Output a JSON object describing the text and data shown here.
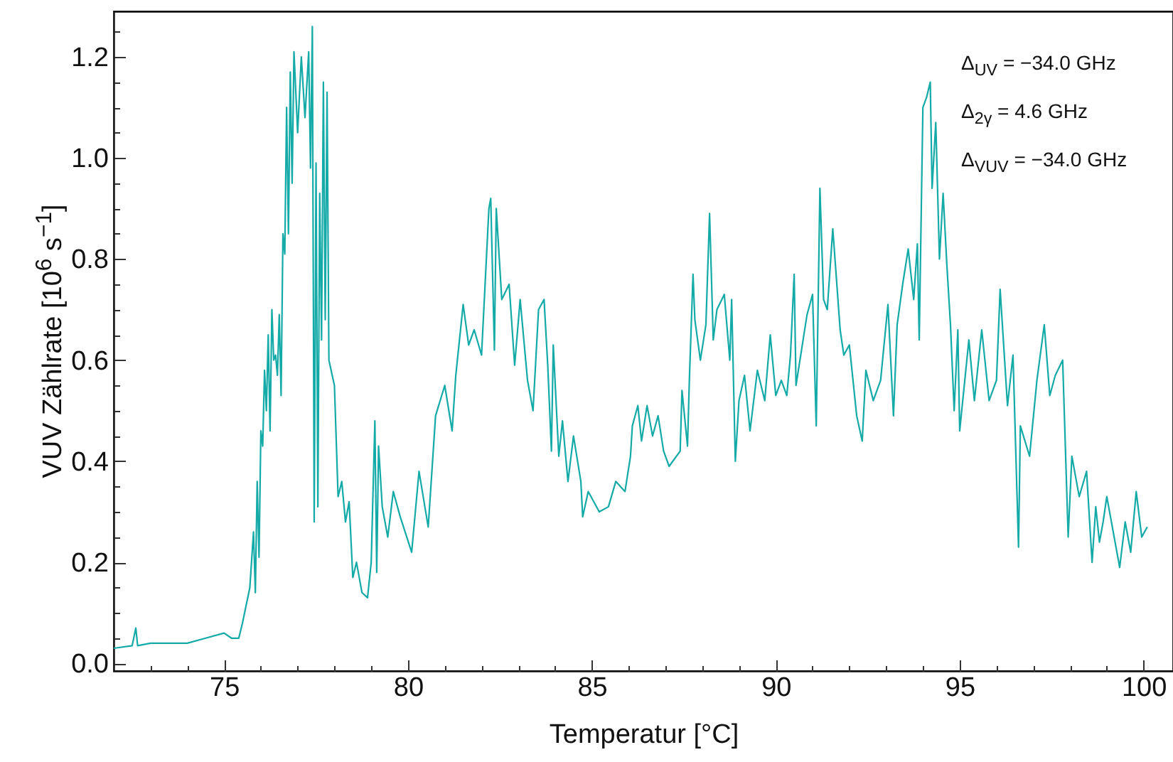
{
  "chart_data": {
    "type": "line",
    "xlabel": "Temperatur [°C]",
    "ylabel": "VUV Zählrate [10$^{6}$ s$^{−1}$]",
    "annotations": [
      "Δ$_{UV}$ = −34.0 GHz",
      "Δ$_{2γ}$ = 4.6 GHz",
      "Δ$_{VUV}$ = −34.0 GHz"
    ],
    "x": [
      72.0,
      72.5,
      72.6,
      72.65,
      73.0,
      73.5,
      74.0,
      74.5,
      75.0,
      75.2,
      75.4,
      75.5,
      75.7,
      75.8,
      75.85,
      75.9,
      75.95,
      76.0,
      76.05,
      76.1,
      76.15,
      76.2,
      76.25,
      76.3,
      76.35,
      76.4,
      76.45,
      76.5,
      76.55,
      76.6,
      76.65,
      76.7,
      76.75,
      76.8,
      76.85,
      76.9,
      77.0,
      77.1,
      77.2,
      77.3,
      77.35,
      77.4,
      77.45,
      77.5,
      77.55,
      77.6,
      77.65,
      77.7,
      77.75,
      77.8,
      77.85,
      78.0,
      78.1,
      78.2,
      78.3,
      78.4,
      78.5,
      78.6,
      78.75,
      78.9,
      79.0,
      79.1,
      79.15,
      79.2,
      79.3,
      79.45,
      79.6,
      79.79,
      80.1,
      80.3,
      80.55,
      80.75,
      81.0,
      81.2,
      81.3,
      81.5,
      81.65,
      81.8,
      82.0,
      82.2,
      82.25,
      82.35,
      82.4,
      82.55,
      82.75,
      82.9,
      83.05,
      83.25,
      83.4,
      83.55,
      83.7,
      83.8,
      83.9,
      83.95,
      84.1,
      84.2,
      84.35,
      84.5,
      84.7,
      84.75,
      84.9,
      85.2,
      85.45,
      85.65,
      85.9,
      86.05,
      86.1,
      86.25,
      86.35,
      86.5,
      86.65,
      86.8,
      86.95,
      87.1,
      87.4,
      87.45,
      87.6,
      87.65,
      87.75,
      87.8,
      87.95,
      88.1,
      88.2,
      88.3,
      88.4,
      88.6,
      88.75,
      88.8,
      88.9,
      89.0,
      89.15,
      89.3,
      89.5,
      89.7,
      89.85,
      90.0,
      90.15,
      90.3,
      90.4,
      90.5,
      90.55,
      90.7,
      90.85,
      91.0,
      91.1,
      91.2,
      91.3,
      91.4,
      91.55,
      91.75,
      91.85,
      92.0,
      92.2,
      92.35,
      92.45,
      92.65,
      92.85,
      93.05,
      93.2,
      93.3,
      93.45,
      93.6,
      93.75,
      93.85,
      93.9,
      94.0,
      94.1,
      94.2,
      94.25,
      94.35,
      94.45,
      94.55,
      94.65,
      94.75,
      94.85,
      94.95,
      95.0,
      95.25,
      95.4,
      95.6,
      95.8,
      96.0,
      96.1,
      96.3,
      96.45,
      96.6,
      96.65,
      96.9,
      97.1,
      97.3,
      97.45,
      97.6,
      97.8,
      97.95,
      98.05,
      98.25,
      98.45,
      98.6,
      98.7,
      98.8,
      98.9,
      99.0,
      99.2,
      99.35,
      99.5,
      99.65,
      99.8,
      99.95,
      100.1
    ],
    "series": [
      {
        "color": "#13aaa8",
        "values": [
          0.03,
          0.035,
          0.07,
          0.035,
          0.04,
          0.04,
          0.04,
          0.05,
          0.06,
          0.05,
          0.05,
          0.08,
          0.15,
          0.26,
          0.14,
          0.36,
          0.21,
          0.46,
          0.43,
          0.58,
          0.5,
          0.65,
          0.46,
          0.7,
          0.6,
          0.61,
          0.57,
          0.69,
          0.53,
          0.85,
          0.81,
          1.1,
          0.85,
          1.17,
          0.95,
          1.21,
          1.05,
          1.2,
          1.08,
          1.21,
          0.98,
          1.26,
          0.28,
          0.99,
          0.31,
          0.93,
          0.64,
          1.15,
          0.68,
          1.13,
          0.6,
          0.55,
          0.33,
          0.36,
          0.28,
          0.32,
          0.17,
          0.2,
          0.14,
          0.13,
          0.2,
          0.48,
          0.18,
          0.43,
          0.31,
          0.25,
          0.34,
          0.29,
          0.22,
          0.38,
          0.27,
          0.49,
          0.55,
          0.46,
          0.57,
          0.71,
          0.63,
          0.66,
          0.61,
          0.9,
          0.92,
          0.62,
          0.9,
          0.72,
          0.75,
          0.59,
          0.72,
          0.56,
          0.5,
          0.7,
          0.72,
          0.59,
          0.42,
          0.63,
          0.41,
          0.48,
          0.36,
          0.45,
          0.36,
          0.29,
          0.34,
          0.3,
          0.31,
          0.36,
          0.34,
          0.41,
          0.47,
          0.51,
          0.44,
          0.51,
          0.45,
          0.49,
          0.42,
          0.39,
          0.42,
          0.54,
          0.43,
          0.56,
          0.77,
          0.68,
          0.6,
          0.67,
          0.89,
          0.64,
          0.7,
          0.73,
          0.6,
          0.72,
          0.4,
          0.52,
          0.57,
          0.46,
          0.58,
          0.52,
          0.65,
          0.53,
          0.56,
          0.53,
          0.61,
          0.77,
          0.55,
          0.62,
          0.69,
          0.73,
          0.47,
          0.94,
          0.72,
          0.7,
          0.86,
          0.66,
          0.61,
          0.63,
          0.49,
          0.44,
          0.58,
          0.52,
          0.56,
          0.71,
          0.49,
          0.67,
          0.75,
          0.82,
          0.72,
          0.83,
          0.64,
          1.1,
          1.12,
          1.15,
          0.94,
          1.07,
          0.8,
          0.93,
          0.79,
          0.67,
          0.5,
          0.66,
          0.46,
          0.64,
          0.52,
          0.66,
          0.52,
          0.56,
          0.74,
          0.51,
          0.61,
          0.23,
          0.47,
          0.41,
          0.56,
          0.67,
          0.53,
          0.57,
          0.6,
          0.25,
          0.41,
          0.33,
          0.38,
          0.2,
          0.31,
          0.24,
          0.28,
          0.33,
          0.25,
          0.19,
          0.28,
          0.22,
          0.34,
          0.25,
          0.27
        ]
      }
    ],
    "xlim": [
      72.0,
      100.8
    ],
    "ylim": [
      -0.015,
      1.29
    ],
    "xticks": [
      {
        "value": 73,
        "label": null
      },
      {
        "value": 74,
        "label": null
      },
      75,
      {
        "value": 76,
        "label": null
      },
      {
        "value": 77,
        "label": null
      },
      {
        "value": 78,
        "label": null
      },
      {
        "value": 79,
        "label": null
      },
      80,
      {
        "value": 81,
        "label": null
      },
      {
        "value": 82,
        "label": null
      },
      {
        "value": 83,
        "label": null
      },
      {
        "value": 84,
        "label": null
      },
      85,
      {
        "value": 86,
        "label": null
      },
      {
        "value": 87,
        "label": null
      },
      {
        "value": 88,
        "label": null
      },
      {
        "value": 89,
        "label": null
      },
      90,
      {
        "value": 91,
        "label": null
      },
      {
        "value": 92,
        "label": null
      },
      {
        "value": 93,
        "label": null
      },
      {
        "value": 94,
        "label": null
      },
      95,
      {
        "value": 96,
        "label": null
      },
      {
        "value": 97,
        "label": null
      },
      {
        "value": 98,
        "label": null
      },
      {
        "value": 99,
        "label": null
      },
      100
    ],
    "yticks": [
      {
        "value": 0,
        "label": "0.0"
      },
      {
        "value": 0.05,
        "label": null
      },
      {
        "value": 0.1,
        "label": null
      },
      {
        "value": 0.15,
        "label": null
      },
      {
        "value": 0.2,
        "label": "0.2"
      },
      {
        "value": 0.25,
        "label": null
      },
      {
        "value": 0.3,
        "label": null
      },
      {
        "value": 0.35,
        "label": null
      },
      {
        "value": 0.4,
        "label": "0.4"
      },
      {
        "value": 0.45,
        "label": null
      },
      {
        "value": 0.5,
        "label": null
      },
      {
        "value": 0.55,
        "label": null
      },
      {
        "value": 0.6,
        "label": "0.6"
      },
      {
        "value": 0.65,
        "label": null
      },
      {
        "value": 0.7,
        "label": null
      },
      {
        "value": 0.75,
        "label": null
      },
      {
        "value": 0.8,
        "label": "0.8"
      },
      {
        "value": 0.85,
        "label": null
      },
      {
        "value": 0.9,
        "label": null
      },
      {
        "value": 0.95,
        "label": null
      },
      {
        "value": 1.0,
        "label": "1.0"
      },
      {
        "value": 1.05,
        "label": null
      },
      {
        "value": 1.1,
        "label": null
      },
      {
        "value": 1.15,
        "label": null
      },
      {
        "value": 1.2,
        "label": "1.2"
      },
      {
        "value": 1.25,
        "label": null
      }
    ]
  }
}
